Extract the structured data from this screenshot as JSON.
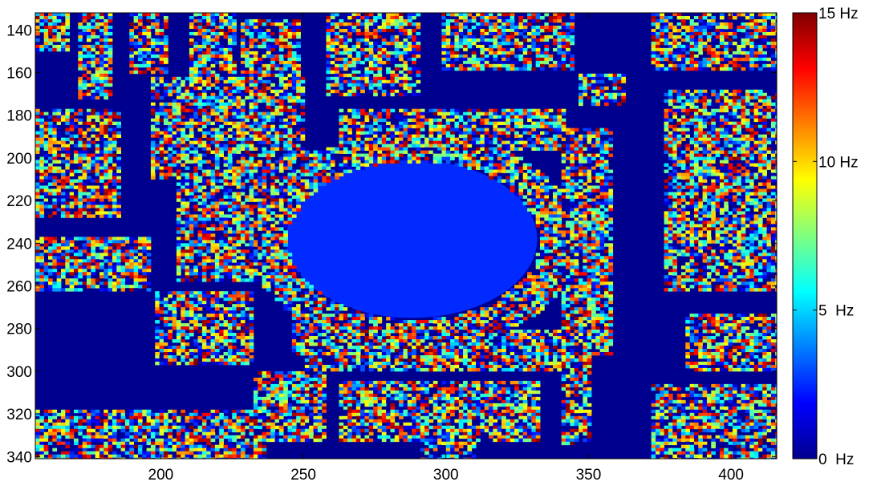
{
  "chart_data": {
    "type": "heatmap",
    "title": "",
    "xlabel": "",
    "ylabel": "",
    "xlim": [
      156,
      416
    ],
    "ylim": [
      341,
      132
    ],
    "x_ticks": [
      "200",
      "250",
      "300",
      "350",
      "400"
    ],
    "y_ticks": [
      "140",
      "160",
      "180",
      "200",
      "220",
      "240",
      "260",
      "280",
      "300",
      "320",
      "340"
    ],
    "colormap": "jet",
    "colorbar": {
      "range": [
        0,
        15
      ],
      "ticks": [
        "0  Hz",
        "5  Hz",
        "10 Hz",
        "15 Hz"
      ]
    },
    "background_value_hz": 0,
    "ellipse_region": {
      "center": [
        288,
        238
      ],
      "radius_x": 44,
      "radius_y": 37,
      "value_hz": 2.5
    },
    "colors": {
      "background": "#00008f",
      "ellipse": "#0a6ef2",
      "noise_low": "#00ffff",
      "noise_high": "#ff0000"
    }
  }
}
